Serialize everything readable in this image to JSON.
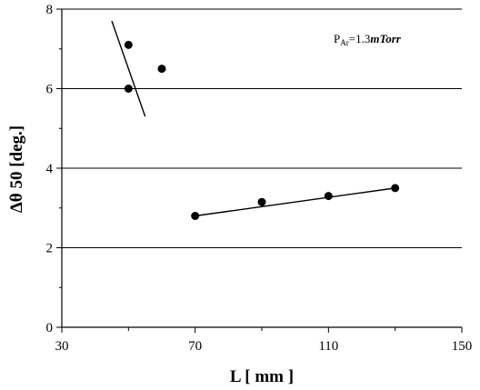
{
  "chart_data": {
    "type": "scatter",
    "xlabel": "L [ mm ]",
    "ylabel": "Δθ 50 [deg.]",
    "xlim": [
      30,
      150
    ],
    "ylim": [
      0,
      8
    ],
    "x_ticks": [
      30,
      70,
      110,
      150
    ],
    "x_tick_labels": [
      "30",
      "70",
      "110",
      "150"
    ],
    "y_ticks": [
      0,
      2,
      4,
      6,
      8
    ],
    "y_tick_labels": [
      "0",
      "2",
      "4",
      "6",
      "8"
    ],
    "grid": "horizontal",
    "annotation": {
      "prefix": "P",
      "subscript": "Ar",
      "eq": "=1.3",
      "unit": "mTorr"
    },
    "points": [
      {
        "x": 50,
        "y": 7.1
      },
      {
        "x": 50,
        "y": 6.0
      },
      {
        "x": 60,
        "y": 6.5
      },
      {
        "x": 70,
        "y": 2.8
      },
      {
        "x": 90,
        "y": 3.15
      },
      {
        "x": 110,
        "y": 3.3
      },
      {
        "x": 130,
        "y": 3.5
      }
    ],
    "trend_lines": [
      {
        "x1": 45,
        "y1": 7.7,
        "x2": 55,
        "y2": 5.3
      },
      {
        "x1": 70,
        "y1": 2.8,
        "x2": 130,
        "y2": 3.5
      }
    ]
  }
}
